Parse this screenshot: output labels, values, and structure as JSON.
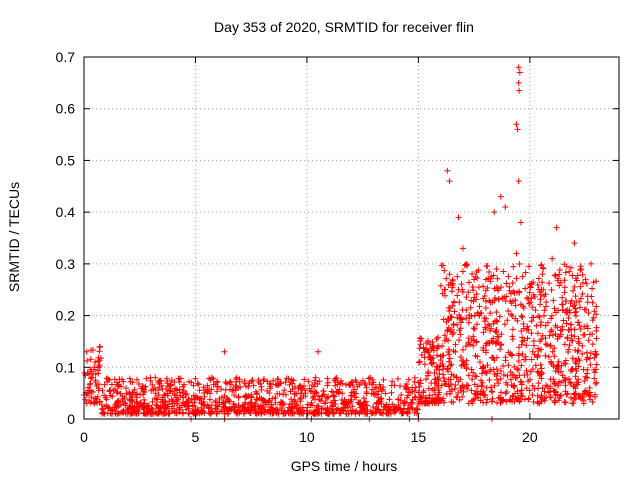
{
  "chart_data": {
    "type": "scatter",
    "title": "Day 353 of 2020, SRMTID for receiver flin",
    "xlabel": "GPS time / hours",
    "ylabel": "SRMTID / TECUs",
    "xlim": [
      0,
      24
    ],
    "ylim": [
      0,
      0.7
    ],
    "xticks": [
      0,
      5,
      10,
      15,
      20
    ],
    "xtick_labels": [
      "0",
      "5",
      "10",
      "15",
      "20"
    ],
    "yticks": [
      0,
      0.1,
      0.2,
      0.3,
      0.4,
      0.5,
      0.6,
      0.7
    ],
    "ytick_labels": [
      "0",
      "0.1",
      "0.2",
      "0.3",
      "0.4",
      "0.5",
      "0.6",
      "0.7"
    ],
    "grid": true,
    "marker": "+",
    "marker_color": "#ff0000",
    "series_summary": [
      {
        "x": [
          0.0,
          0.8
        ],
        "y": [
          0.03,
          0.14
        ]
      },
      {
        "x": [
          0.8,
          15.0
        ],
        "y": [
          0.01,
          0.08
        ]
      },
      {
        "x": [
          15.0,
          16.0
        ],
        "y": [
          0.03,
          0.16
        ]
      },
      {
        "x": [
          16.0,
          19.0
        ],
        "y": [
          0.03,
          0.3
        ]
      },
      {
        "x": [
          19.0,
          23.0
        ],
        "y": [
          0.03,
          0.3
        ]
      }
    ],
    "points": [
      [
        0.12,
        0.13
      ],
      [
        0.5,
        0.11
      ],
      [
        3.2,
        0.08
      ],
      [
        6.3,
        0.13
      ],
      [
        10.5,
        0.13
      ],
      [
        16.3,
        0.48
      ],
      [
        16.4,
        0.46
      ],
      [
        16.8,
        0.39
      ],
      [
        17.0,
        0.33
      ],
      [
        18.4,
        0.4
      ],
      [
        18.7,
        0.43
      ],
      [
        18.9,
        0.41
      ],
      [
        19.5,
        0.68
      ],
      [
        19.55,
        0.67
      ],
      [
        19.5,
        0.65
      ],
      [
        19.52,
        0.635
      ],
      [
        19.4,
        0.57
      ],
      [
        19.45,
        0.56
      ],
      [
        19.5,
        0.46
      ],
      [
        19.6,
        0.38
      ],
      [
        19.4,
        0.32
      ],
      [
        21.2,
        0.37
      ],
      [
        21.0,
        0.31
      ],
      [
        22.0,
        0.34
      ],
      [
        22.3,
        0.29
      ],
      [
        22.5,
        0.27
      ],
      [
        17.5,
        0.27
      ],
      [
        18.5,
        0.29
      ],
      [
        16.2,
        0.25
      ],
      [
        16.4,
        0.28
      ],
      [
        16.8,
        0.25
      ],
      [
        20.0,
        0.26
      ],
      [
        22.0,
        0.22
      ],
      [
        20.5,
        0.24
      ]
    ],
    "outliers_near_axis": [
      [
        4.8,
        0.0
      ],
      [
        6.3,
        0.0
      ],
      [
        10.2,
        0.0
      ],
      [
        12.8,
        0.0
      ],
      [
        14.6,
        0.0
      ],
      [
        15.0,
        0.0
      ],
      [
        18.3,
        0.0
      ]
    ]
  }
}
